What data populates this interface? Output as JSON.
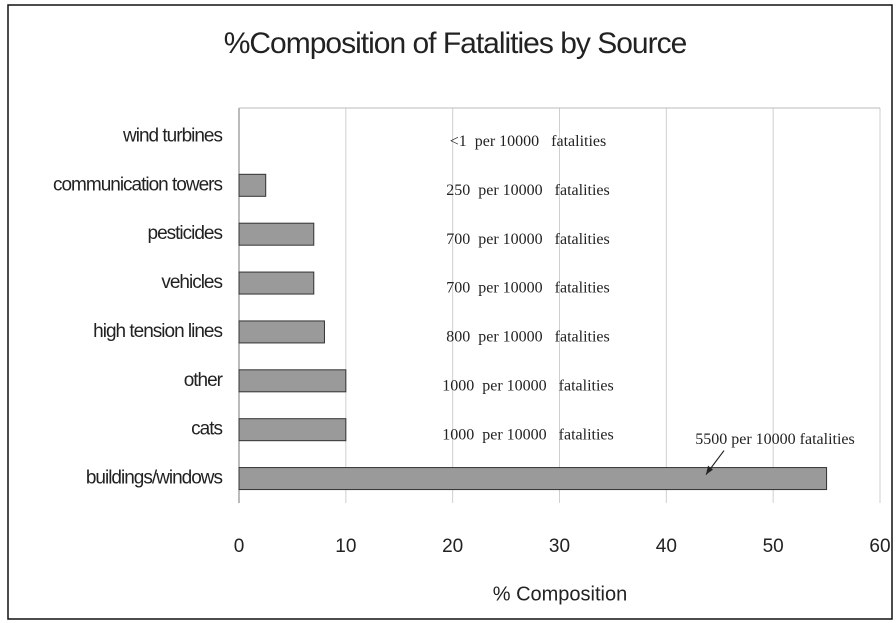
{
  "chart_data": {
    "type": "bar",
    "orientation": "horizontal",
    "title": "%Composition of Fatalities by Source",
    "xlabel": "% Composition",
    "categories": [
      "wind turbines",
      "communication towers",
      "pesticides",
      "vehicles",
      "high tension lines",
      "other",
      "cats",
      "buildings/windows"
    ],
    "values": [
      0,
      2.5,
      7,
      7,
      8,
      10,
      10,
      55
    ],
    "value_labels": [
      "<1  per 10000   fatalities",
      "250  per 10000   fatalities",
      "700  per 10000   fatalities",
      "700  per 10000   fatalities",
      "800  per 10000   fatalities",
      "1000  per 10000   fatalities",
      "1000  per 10000   fatalities",
      "5500 per 10000 fatalities"
    ],
    "color": "#9a9a9a",
    "xlim": [
      0,
      60
    ],
    "xticks": [
      0,
      10,
      20,
      30,
      40,
      50,
      60
    ],
    "grid": true
  }
}
